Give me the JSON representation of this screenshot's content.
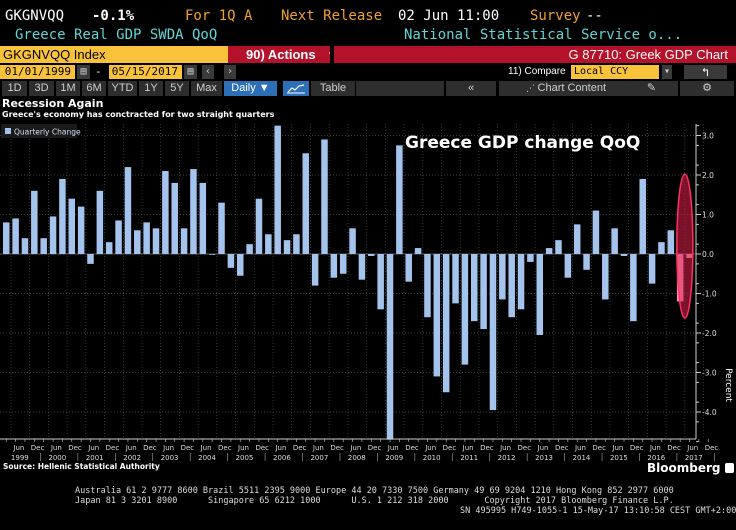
{
  "header": {
    "ticker": "GKGNVQQ",
    "value": "-0.1%",
    "period": "For 1Q A",
    "next_release_label": "Next Release",
    "next_release_value": "02 Jun 11:00",
    "survey_label": "Survey",
    "survey_value": "--",
    "description": "Greece Real GDP SWDA QoQ",
    "source_name": "National Statistical Service o..."
  },
  "toolbar": {
    "security": "GKGNVQQ Index",
    "actions": "90) Actions",
    "chart_id": "G 87710: Greek GDP Chart",
    "start_date": "01/01/1999",
    "separator": "-",
    "end_date": "05/15/2017",
    "compare_label": "11) Compare",
    "compare_value": "Local CCY",
    "ranges": [
      "1D",
      "3D",
      "1M",
      "6M",
      "YTD",
      "1Y",
      "5Y",
      "Max"
    ],
    "frequency": "Daily ▼",
    "table_label": "Table",
    "collapse_label": "«",
    "chart_content_label": "Chart Content"
  },
  "chart_data": {
    "type": "bar",
    "title": "Recession Again",
    "subtitle": "Greece's economy has conctracted for two straight quarters",
    "annotation": "Greece GDP change QoQ",
    "legend": [
      "Quarterly Change"
    ],
    "legend_position": "top-left",
    "ylabel": "Percent",
    "ylim": [
      -4.7,
      3.3
    ],
    "yticks": [
      3.0,
      2.0,
      1.0,
      0.0,
      -1.0,
      -2.0,
      -3.0,
      -4.0
    ],
    "ytick_labels": [
      "3.0",
      "2.0",
      "1.0",
      "0.0",
      "-1.0",
      "-2.0",
      "-3.0",
      "-4.0"
    ],
    "xtick_month_labels": [
      "Jun",
      "Dec"
    ],
    "xtick_years": [
      "1999",
      "2000",
      "2001",
      "2002",
      "2003",
      "2004",
      "2005",
      "2006",
      "2007",
      "2008",
      "2009",
      "2010",
      "2011",
      "2012",
      "2013",
      "2014",
      "2015",
      "2016",
      "2017"
    ],
    "grid": true,
    "series": [
      {
        "name": "Quarterly Change",
        "color": "#a4c4ee",
        "start": "1999Q1",
        "values": [
          0.8,
          0.9,
          0.4,
          1.6,
          0.4,
          0.95,
          1.9,
          1.4,
          1.2,
          -0.25,
          1.6,
          0.3,
          0.85,
          2.2,
          0.6,
          0.8,
          0.65,
          2.1,
          1.8,
          0.65,
          2.15,
          1.8,
          0.0,
          1.3,
          -0.35,
          -0.55,
          0.25,
          1.4,
          0.5,
          3.25,
          0.35,
          0.5,
          2.55,
          -0.8,
          2.9,
          -0.6,
          -0.5,
          0.65,
          -0.65,
          -0.05,
          -1.4,
          -4.7,
          2.75,
          -0.7,
          0.15,
          -1.6,
          -3.1,
          -3.5,
          -1.25,
          -2.8,
          -1.7,
          -1.9,
          -3.95,
          -1.15,
          -1.6,
          -1.4,
          -0.2,
          -2.05,
          0.15,
          0.35,
          -0.6,
          0.75,
          -0.4,
          1.1,
          -1.15,
          0.65,
          -0.05,
          -1.7,
          1.9,
          -0.75,
          0.3,
          0.6,
          -1.2,
          -0.1
        ]
      }
    ],
    "highlight": {
      "last_n": 2,
      "color": "#e0204a"
    },
    "source": "Source: Hellenic Statistical Authority",
    "brand": "Bloomberg"
  },
  "footer": {
    "line1": "Australia 61 2 9777 8600 Brazil 5511 2395 9000 Europe 44 20 7330 7500 Germany 49 69 9204 1210 Hong Kong 852 2977 6000",
    "line2": "Japan 81 3 3201 8900      Singapore 65 6212 1000      U.S. 1 212 318 2000       Copyright 2017 Bloomberg Finance L.P.",
    "line3": "SN 495995 H749-1055-1 15-May-17 13:10:58 CEST GMT+2:00"
  }
}
